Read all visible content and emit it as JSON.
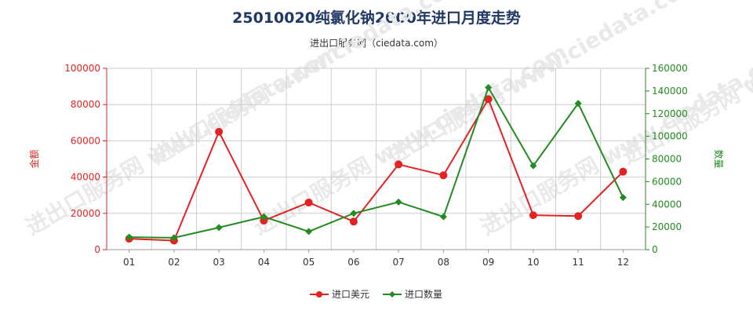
{
  "header": {
    "title": "25010020纯氯化钠2000年进口月度走势",
    "subtitle": "进出口服务网（ciedata.com）"
  },
  "watermark": "进出口服务网 www.ciedata.com",
  "colors": {
    "left_axis": "#e32222",
    "right_axis": "#228b22",
    "grid": "#cccccc"
  },
  "chart_data": {
    "type": "line",
    "categories": [
      "01",
      "02",
      "03",
      "04",
      "05",
      "06",
      "07",
      "08",
      "09",
      "10",
      "11",
      "12"
    ],
    "y_left": {
      "label": "金额",
      "ylim": [
        0,
        100000
      ],
      "ticks": [
        0,
        20000,
        40000,
        60000,
        80000,
        100000
      ]
    },
    "y_right": {
      "label": "数量",
      "ylim": [
        0,
        160000
      ],
      "ticks": [
        0,
        20000,
        40000,
        60000,
        80000,
        100000,
        120000,
        140000,
        160000
      ]
    },
    "grid": true,
    "legend_position": "bottom",
    "series": [
      {
        "name": "进口美元",
        "axis": "left",
        "color": "#e32222",
        "values": [
          6000,
          5000,
          65000,
          16000,
          26000,
          15500,
          47000,
          41000,
          83000,
          19000,
          18500,
          43000
        ]
      },
      {
        "name": "进口数量",
        "axis": "right",
        "color": "#228b22",
        "values": [
          11000,
          10500,
          19500,
          29000,
          16000,
          32000,
          42000,
          29000,
          143000,
          74000,
          129000,
          46000
        ]
      }
    ]
  }
}
